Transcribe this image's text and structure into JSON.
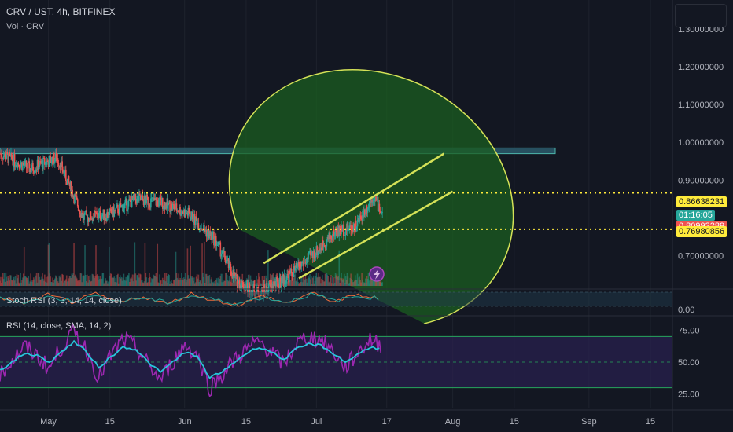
{
  "header": {
    "symbol": "CRV / UST, 4h, BITFINEX",
    "volume_label": "Vol · CRV",
    "stoch_label": "Stoch RSI (3, 3, 14, 14, close)",
    "rsi_label": "RSI (14, close, SMA, 14, 2)"
  },
  "price_labels": {
    "resistance": "0.86638231",
    "countdown": "01:16:05",
    "current_hidden": "0.80993289",
    "support": "0.76980856"
  },
  "colors": {
    "background": "#131722",
    "up": "#26a69a",
    "down": "#ef5350",
    "ellipse_fill": "#1b5e20",
    "ellipse_stroke": "#d4e157",
    "channel": "#d4e157",
    "dotted_lines": "#ffeb3b",
    "zone": "#2b5a6b",
    "rsi": "#9c27b0",
    "rsi_ma": "#26c6da",
    "stoch_k": "#ef6c3a",
    "stoch_d": "#26a69a"
  },
  "chart_data": [
    {
      "type": "candlestick",
      "title": "CRV / UST, 4h, BITFINEX",
      "x_ticks": [
        "May",
        "15",
        "Jun",
        "15",
        "Jul",
        "17",
        "Aug",
        "15",
        "Sep",
        "15"
      ],
      "y_ticks": [
        "1.30000000",
        "1.20000000",
        "1.10000000",
        "1.00000000",
        "0.90000000",
        "0.70000000"
      ],
      "ylim": [
        0.62,
        1.36
      ],
      "series": [
        {
          "x": [
            "2022-04-20",
            "2022-04-27",
            "2022-05-03",
            "2022-05-09",
            "2022-05-15",
            "2022-05-21",
            "2022-05-27",
            "2022-06-02",
            "2022-06-08",
            "2022-06-13",
            "2022-06-18",
            "2022-06-24",
            "2022-06-30",
            "2022-07-05",
            "2022-07-10",
            "2022-07-14",
            "2022-07-16"
          ],
          "values": [
            0.97,
            0.93,
            0.96,
            0.8,
            0.81,
            0.85,
            0.84,
            0.81,
            0.74,
            0.63,
            0.6,
            0.64,
            0.7,
            0.76,
            0.78,
            0.86,
            0.81
          ]
        }
      ],
      "annotations": {
        "resistance_zone": [
          0.97,
          0.985
        ],
        "dotted_levels": [
          0.86638231,
          0.76980856
        ],
        "current_price": 0.80993289,
        "channel_upper": {
          "from": [
            "2022-06-19",
            0.68
          ],
          "to": [
            "2022-07-30",
            0.97
          ]
        },
        "channel_lower": {
          "from": [
            "2022-06-27",
            0.64
          ],
          "to": [
            "2022-08-01",
            0.87
          ]
        }
      }
    },
    {
      "type": "line",
      "title": "Stoch RSI (3, 3, 14, 14, close)",
      "y_ticks": [
        "0.00"
      ],
      "ylim": [
        0,
        100
      ],
      "series": [
        {
          "name": "K",
          "values": [
            60,
            20,
            80,
            30,
            85,
            25,
            70,
            15,
            90,
            40,
            10,
            75,
            20,
            95,
            35,
            80,
            50
          ]
        },
        {
          "name": "D",
          "values": [
            55,
            30,
            65,
            40,
            70,
            35,
            60,
            25,
            75,
            45,
            20,
            65,
            30,
            85,
            40,
            70,
            55
          ]
        }
      ]
    },
    {
      "type": "line",
      "title": "RSI (14, close, SMA, 14, 2)",
      "y_ticks": [
        "75.00",
        "50.00",
        "25.00"
      ],
      "ylim": [
        15,
        85
      ],
      "series": [
        {
          "name": "RSI",
          "values": [
            40,
            52,
            62,
            55,
            45,
            62,
            74,
            60,
            38,
            55,
            68,
            62,
            48,
            36,
            50,
            64,
            55,
            30,
            40,
            52,
            60,
            66,
            58,
            48,
            64,
            70,
            68,
            58,
            46,
            57,
            68,
            62
          ]
        },
        {
          "name": "RSI-based MA",
          "values": [
            44,
            50,
            57,
            55,
            50,
            58,
            66,
            58,
            46,
            54,
            62,
            60,
            50,
            42,
            50,
            58,
            54,
            38,
            42,
            50,
            57,
            62,
            58,
            52,
            60,
            64,
            63,
            57,
            50,
            56,
            62,
            60
          ]
        }
      ]
    }
  ]
}
